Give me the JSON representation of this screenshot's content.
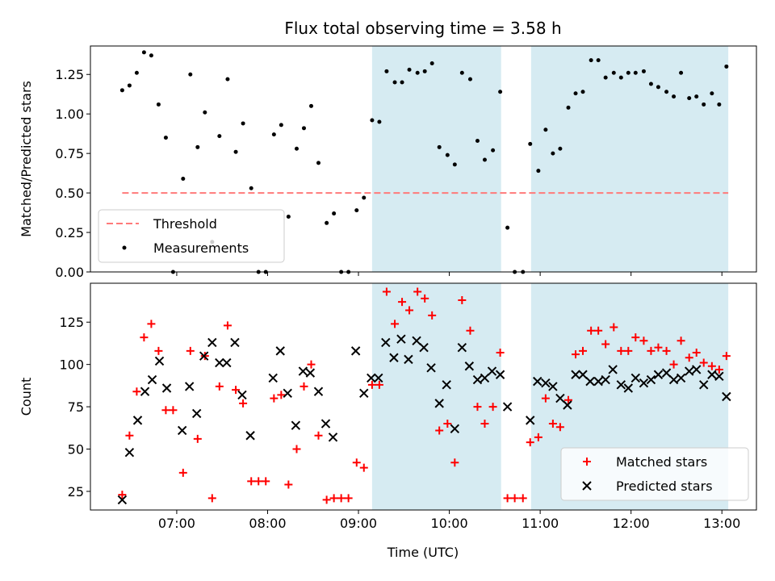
{
  "chart_data": {
    "title": "Flux total observing time = 3.58 h",
    "type": "scatter",
    "x_unit": "hours (UTC)",
    "xlabel": "Time (UTC)",
    "xlim": [
      6.05,
      13.38
    ],
    "x_ticks": [
      7,
      8,
      9,
      10,
      11,
      12,
      13
    ],
    "x_tick_labels": [
      "07:00",
      "08:00",
      "09:00",
      "10:00",
      "11:00",
      "12:00",
      "13:00"
    ],
    "shaded_intervals": [
      [
        9.15,
        10.57
      ],
      [
        10.9,
        13.07
      ]
    ],
    "shade_color": "#add8e6",
    "panels": [
      {
        "ylabel": "Matched/Predicted stars",
        "ylim": [
          0,
          1.43
        ],
        "y_ticks": [
          0,
          0.25,
          0.5,
          0.75,
          1.0,
          1.25
        ],
        "y_tick_labels": [
          "0.00",
          "0.25",
          "0.50",
          "0.75",
          "1.00",
          "1.25"
        ],
        "legend": {
          "placement": "lower-left",
          "entries": [
            "Threshold",
            "Measurements"
          ]
        },
        "threshold": {
          "name": "Threshold",
          "y": 0.5,
          "x_range": [
            6.4,
            13.07
          ],
          "color": "#ff7a7a"
        },
        "series": [
          {
            "name": "Measurements",
            "marker": "dot",
            "color": "#000000",
            "x": [
              6.4,
              6.48,
              6.56,
              6.64,
              6.72,
              6.8,
              6.88,
              6.96,
              7.07,
              7.15,
              7.23,
              7.31,
              7.39,
              7.47,
              7.56,
              7.65,
              7.73,
              7.82,
              7.9,
              7.98,
              8.07,
              8.15,
              8.23,
              8.32,
              8.4,
              8.48,
              8.56,
              8.65,
              8.73,
              8.81,
              8.89,
              8.98,
              9.06,
              9.15,
              9.23,
              9.31,
              9.4,
              9.48,
              9.56,
              9.65,
              9.73,
              9.81,
              9.89,
              9.98,
              10.06,
              10.14,
              10.23,
              10.31,
              10.39,
              10.48,
              10.56,
              10.64,
              10.72,
              10.81,
              10.89,
              10.98,
              11.06,
              11.14,
              11.22,
              11.31,
              11.39,
              11.47,
              11.56,
              11.64,
              11.72,
              11.81,
              11.89,
              11.97,
              12.05,
              12.14,
              12.22,
              12.3,
              12.39,
              12.47,
              12.55,
              12.64,
              12.72,
              12.8,
              12.89,
              12.97,
              13.05
            ],
            "y": [
              1.15,
              1.18,
              1.26,
              1.39,
              1.37,
              1.06,
              0.85,
              0.0,
              0.59,
              1.25,
              0.79,
              1.01,
              0.19,
              0.86,
              1.22,
              0.76,
              0.94,
              0.53,
              0.0,
              0.0,
              0.87,
              0.93,
              0.35,
              0.78,
              0.91,
              1.05,
              0.69,
              0.31,
              0.37,
              0.0,
              0.0,
              0.39,
              0.47,
              0.96,
              0.95,
              1.27,
              1.2,
              1.2,
              1.28,
              1.26,
              1.27,
              1.32,
              0.79,
              0.74,
              0.68,
              1.26,
              1.22,
              0.83,
              0.71,
              0.77,
              1.14,
              0.28,
              0.0,
              0.0,
              0.81,
              0.64,
              0.9,
              0.75,
              0.78,
              1.04,
              1.13,
              1.14,
              1.34,
              1.34,
              1.23,
              1.26,
              1.23,
              1.26,
              1.26,
              1.27,
              1.19,
              1.17,
              1.14,
              1.11,
              1.26,
              1.1,
              1.11,
              1.06,
              1.13,
              1.06,
              1.3
            ]
          }
        ]
      },
      {
        "ylabel": "Count",
        "ylim": [
          14,
          148
        ],
        "y_ticks": [
          25,
          50,
          75,
          100,
          125
        ],
        "y_tick_labels": [
          "25",
          "50",
          "75",
          "100",
          "125"
        ],
        "legend": {
          "placement": "lower-right",
          "entries": [
            "Matched stars",
            "Predicted stars"
          ]
        },
        "series": [
          {
            "name": "Matched stars",
            "marker": "plus",
            "color": "#ff0000",
            "x": [
              6.4,
              6.48,
              6.56,
              6.64,
              6.72,
              6.8,
              6.88,
              6.96,
              7.07,
              7.15,
              7.23,
              7.31,
              7.39,
              7.47,
              7.56,
              7.65,
              7.73,
              7.82,
              7.9,
              7.98,
              8.07,
              8.15,
              8.23,
              8.32,
              8.4,
              8.48,
              8.56,
              8.65,
              8.73,
              8.81,
              8.89,
              8.98,
              9.06,
              9.15,
              9.23,
              9.31,
              9.4,
              9.48,
              9.56,
              9.65,
              9.73,
              9.81,
              9.89,
              9.98,
              10.06,
              10.14,
              10.23,
              10.31,
              10.39,
              10.48,
              10.56,
              10.64,
              10.72,
              10.81,
              10.89,
              10.98,
              11.06,
              11.14,
              11.22,
              11.31,
              11.39,
              11.47,
              11.56,
              11.64,
              11.72,
              11.81,
              11.89,
              11.97,
              12.05,
              12.14,
              12.22,
              12.3,
              12.39,
              12.47,
              12.55,
              12.64,
              12.72,
              12.8,
              12.89,
              12.97,
              13.05
            ],
            "y": [
              23,
              58,
              84,
              116,
              124,
              108,
              73,
              73,
              36,
              108,
              56,
              105,
              21,
              87,
              123,
              85,
              77,
              31,
              31,
              31,
              80,
              82,
              29,
              50,
              87,
              100,
              58,
              20,
              21,
              21,
              21,
              42,
              39,
              88,
              88,
              143,
              124,
              137,
              132,
              143,
              139,
              129,
              61,
              65,
              42,
              138,
              120,
              75,
              65,
              75,
              107,
              21,
              21,
              21,
              54,
              57,
              80,
              65,
              63,
              79,
              106,
              108,
              120,
              120,
              112,
              122,
              108,
              108,
              116,
              114,
              108,
              110,
              108,
              100,
              114,
              104,
              107,
              101,
              99,
              97,
              105
            ]
          },
          {
            "name": "Predicted stars",
            "marker": "x",
            "color": "#000000",
            "x": [
              6.4,
              6.48,
              6.57,
              6.65,
              6.73,
              6.81,
              6.89,
              7.06,
              7.14,
              7.22,
              7.3,
              7.39,
              7.47,
              7.55,
              7.64,
              7.72,
              7.81,
              8.06,
              8.14,
              8.22,
              8.31,
              8.39,
              8.47,
              8.56,
              8.64,
              8.72,
              8.97,
              9.06,
              9.14,
              9.22,
              9.3,
              9.39,
              9.47,
              9.55,
              9.64,
              9.72,
              9.8,
              9.89,
              9.97,
              10.06,
              10.14,
              10.22,
              10.31,
              10.39,
              10.47,
              10.56,
              10.64,
              10.89,
              10.97,
              11.06,
              11.14,
              11.22,
              11.3,
              11.39,
              11.47,
              11.55,
              11.64,
              11.72,
              11.8,
              11.89,
              11.97,
              12.05,
              12.14,
              12.22,
              12.3,
              12.39,
              12.47,
              12.55,
              12.64,
              12.72,
              12.8,
              12.89,
              12.97,
              13.05
            ],
            "y": [
              20,
              48,
              67,
              84,
              91,
              102,
              86,
              61,
              87,
              71,
              105,
              113,
              101,
              101,
              113,
              82,
              58,
              92,
              108,
              83,
              64,
              96,
              95,
              84,
              65,
              57,
              108,
              83,
              92,
              92,
              113,
              104,
              115,
              103,
              114,
              110,
              98,
              77,
              88,
              62,
              110,
              99,
              91,
              92,
              96,
              94,
              75,
              67,
              90,
              89,
              87,
              80,
              76,
              94,
              94,
              90,
              90,
              91,
              97,
              88,
              86,
              92,
              89,
              91,
              94,
              95,
              91,
              92,
              96,
              97,
              88,
              94,
              93,
              81
            ]
          }
        ]
      }
    ]
  }
}
